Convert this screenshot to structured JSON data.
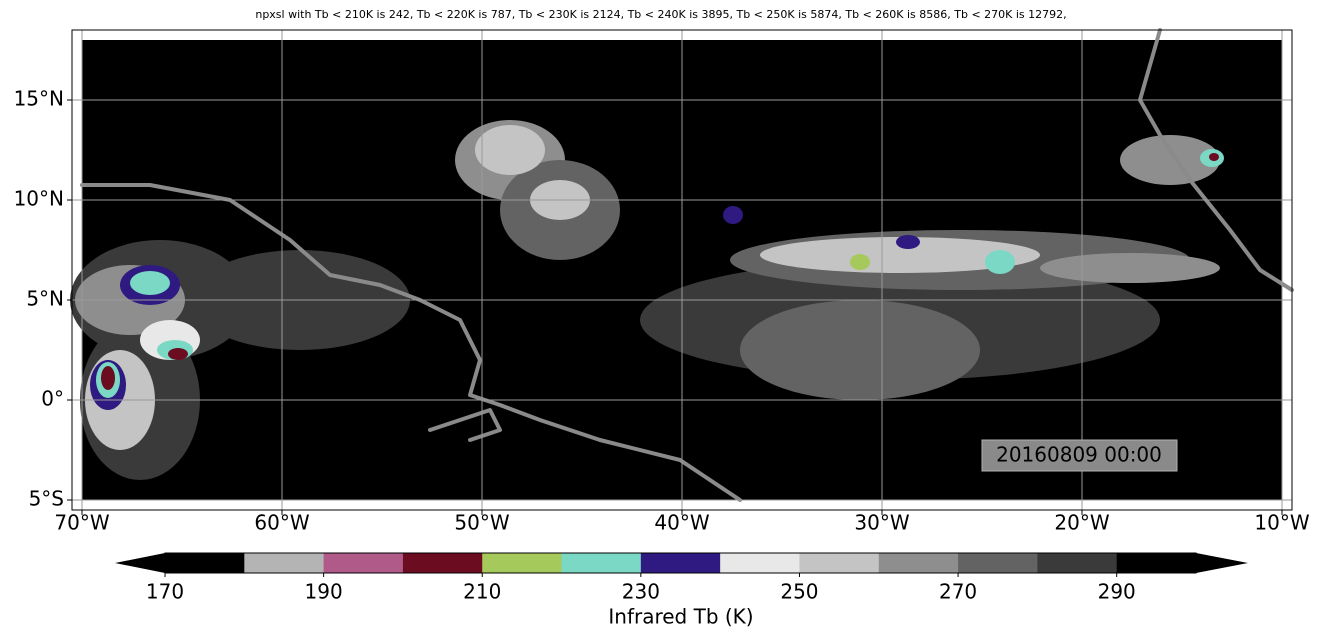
{
  "title": "npxsl with Tb < 210K is 242,  Tb < 220K is 787,  Tb < 230K is 2124,  Tb < 240K is 3895,  Tb < 250K is 5874,  Tb < 260K is 8586,  Tb < 270K is 12792,",
  "map": {
    "xlim": [
      -70.5,
      -9.5
    ],
    "ylim": [
      -5.5,
      18.5
    ],
    "grid": true,
    "xticks": [
      {
        "value": -70,
        "label": "70°W"
      },
      {
        "value": -60,
        "label": "60°W"
      },
      {
        "value": -50,
        "label": "50°W"
      },
      {
        "value": -40,
        "label": "40°W"
      },
      {
        "value": -30,
        "label": "30°W"
      },
      {
        "value": -20,
        "label": "20°W"
      },
      {
        "value": -10,
        "label": "10°W"
      }
    ],
    "yticks": [
      {
        "value": -5,
        "label": "5°S"
      },
      {
        "value": 0,
        "label": "0°"
      },
      {
        "value": 5,
        "label": "5°N"
      },
      {
        "value": 10,
        "label": "10°N"
      },
      {
        "value": 15,
        "label": "15°N"
      }
    ],
    "timestamp": "20160809 00:00"
  },
  "colorbar": {
    "label": "Infrared Tb (K)",
    "levels": [
      170,
      180,
      190,
      200,
      210,
      220,
      230,
      240,
      250,
      260,
      270,
      280,
      290,
      300
    ],
    "colors": [
      "#000000",
      "#b4b4b4",
      "#b05a8a",
      "#6b0c20",
      "#a6c95c",
      "#7ad8c4",
      "#2e1a80",
      "#e8e8e8",
      "#c4c4c4",
      "#8e8e8e",
      "#636363",
      "#3a3a3a",
      "#000000"
    ],
    "ticks": [
      170,
      190,
      210,
      230,
      250,
      270,
      290
    ]
  }
}
